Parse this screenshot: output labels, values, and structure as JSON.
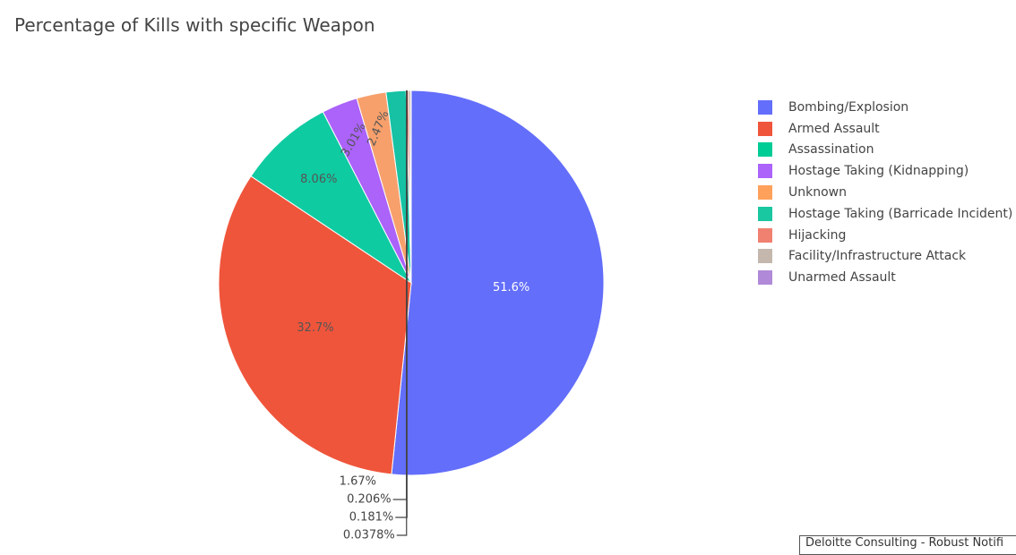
{
  "chart_data": {
    "type": "pie",
    "title": "Percentage of Kills with specific Weapon",
    "sort": false,
    "direction": "clockwise",
    "legend_position": "right",
    "categories": [
      "Bombing/Explosion",
      "Armed Assault",
      "Assassination",
      "Hostage Taking (Kidnapping)",
      "Unknown",
      "Hostage Taking (Barricade Incident)",
      "Hijacking",
      "Facility/Infrastructure Attack",
      "Unarmed Assault"
    ],
    "values": [
      51.6,
      32.7,
      8.06,
      3.01,
      2.47,
      1.67,
      0.206,
      0.181,
      0.0378
    ],
    "labels": [
      "51.6%",
      "32.7%",
      "8.06%",
      "3.01%",
      "2.47%",
      "1.67%",
      "0.206%",
      "0.181%",
      "0.0378%"
    ],
    "colors": [
      "#636efa",
      "#ef553b",
      "#00cc96",
      "#ab63fa",
      "#ffa15a",
      "#19d3f3",
      "#ff6692",
      "#b6e880",
      "#ff97ff"
    ],
    "legend_colors": [
      "#636efa",
      "#ef553b",
      "#00cc96",
      "#ab63fa",
      "#ffa15a",
      "#19c7a0",
      "#f08070",
      "#c4b8ae",
      "#b08ad8"
    ],
    "slice_colors": [
      "#636efa",
      "#ef553b",
      "#0ecba1",
      "#ab63fa",
      "#f7a06c",
      "#16c2a3",
      "#e77a6a",
      "#c4b8ae",
      "#b08ad8"
    ],
    "label_text_colors": [
      "#ffffff",
      "#555555",
      "#555555",
      "#555555",
      "#555555",
      "#444444",
      "#444444",
      "#444444",
      "#444444"
    ]
  },
  "footer": {
    "text": "Deloitte Consulting - Robust Notifi"
  }
}
